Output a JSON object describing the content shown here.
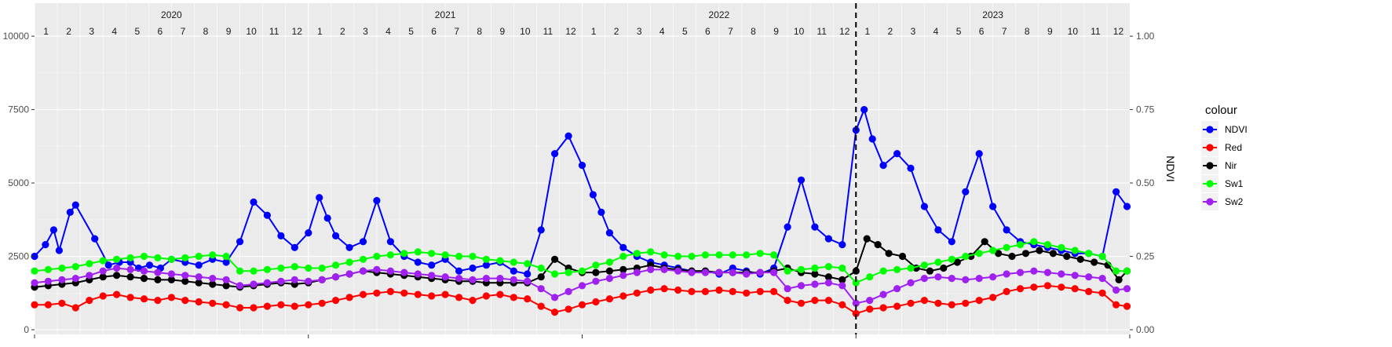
{
  "chart_data": {
    "type": "line",
    "title": "",
    "xlabel": "",
    "ylabel": "",
    "y2label": "NDVI",
    "ylim": [
      0,
      10000
    ],
    "y2lim": [
      0,
      1
    ],
    "yticks": [
      "0",
      "2500",
      "5000",
      "7500",
      "10000"
    ],
    "y2ticks": [
      "0.00",
      "0.25",
      "0.50",
      "0.75",
      "1.00"
    ],
    "grid": true,
    "legend_title": "colour",
    "legend_position": "right",
    "years": [
      "2020",
      "2021",
      "2022",
      "2023"
    ],
    "months": [
      "1",
      "2",
      "3",
      "4",
      "5",
      "6",
      "7",
      "8",
      "9",
      "10",
      "11",
      "12"
    ],
    "vline_x": 2023.0,
    "series": [
      {
        "name": "NDVI",
        "color": "#0000ff",
        "x": [
          2020.0,
          2020.04,
          2020.07,
          2020.09,
          2020.13,
          2020.15,
          2020.22,
          2020.27,
          2020.31,
          2020.35,
          2020.38,
          2020.42,
          2020.46,
          2020.5,
          2020.55,
          2020.6,
          2020.65,
          2020.7,
          2020.75,
          2020.8,
          2020.85,
          2020.9,
          2020.95,
          2021.0,
          2021.04,
          2021.07,
          2021.1,
          2021.15,
          2021.2,
          2021.25,
          2021.3,
          2021.35,
          2021.4,
          2021.45,
          2021.5,
          2021.55,
          2021.6,
          2021.65,
          2021.7,
          2021.75,
          2021.8,
          2021.85,
          2021.9,
          2021.95,
          2022.0,
          2022.04,
          2022.07,
          2022.1,
          2022.15,
          2022.2,
          2022.25,
          2022.3,
          2022.35,
          2022.4,
          2022.45,
          2022.5,
          2022.55,
          2022.6,
          2022.65,
          2022.7,
          2022.75,
          2022.8,
          2022.85,
          2022.9,
          2022.95,
          2023.0,
          2023.03,
          2023.06,
          2023.1,
          2023.15,
          2023.2,
          2023.25,
          2023.3,
          2023.35,
          2023.4,
          2023.45,
          2023.5,
          2023.55,
          2023.6,
          2023.65,
          2023.7,
          2023.75,
          2023.8,
          2023.85,
          2023.9,
          2023.95,
          2023.99
        ],
        "y": [
          2500,
          2900,
          3400,
          2700,
          4000,
          4250,
          3100,
          2200,
          2300,
          2300,
          2100,
          2200,
          2100,
          2400,
          2300,
          2200,
          2400,
          2300,
          3000,
          4350,
          3900,
          3200,
          2800,
          3300,
          4500,
          3800,
          3200,
          2800,
          3000,
          4400,
          3000,
          2500,
          2300,
          2200,
          2400,
          2000,
          2100,
          2200,
          2300,
          2000,
          1900,
          3400,
          6000,
          6600,
          5600,
          4600,
          4000,
          3300,
          2800,
          2500,
          2300,
          2200,
          2100,
          2000,
          2000,
          1900,
          2100,
          2000,
          1900,
          2100,
          3500,
          5100,
          3500,
          3100,
          2900,
          6800,
          7500,
          6500,
          5600,
          6000,
          5500,
          4200,
          3400,
          3000,
          4700,
          6000,
          4200,
          3400,
          3000,
          2900,
          2800,
          2700,
          2600,
          2600,
          2500,
          4700,
          4200
        ]
      },
      {
        "name": "Red",
        "color": "#ff0000",
        "x": [
          2020.0,
          2020.05,
          2020.1,
          2020.15,
          2020.2,
          2020.25,
          2020.3,
          2020.35,
          2020.4,
          2020.45,
          2020.5,
          2020.55,
          2020.6,
          2020.65,
          2020.7,
          2020.75,
          2020.8,
          2020.85,
          2020.9,
          2020.95,
          2021.0,
          2021.05,
          2021.1,
          2021.15,
          2021.2,
          2021.25,
          2021.3,
          2021.35,
          2021.4,
          2021.45,
          2021.5,
          2021.55,
          2021.6,
          2021.65,
          2021.7,
          2021.75,
          2021.8,
          2021.85,
          2021.9,
          2021.95,
          2022.0,
          2022.05,
          2022.1,
          2022.15,
          2022.2,
          2022.25,
          2022.3,
          2022.35,
          2022.4,
          2022.45,
          2022.5,
          2022.55,
          2022.6,
          2022.65,
          2022.7,
          2022.75,
          2022.8,
          2022.85,
          2022.9,
          2022.95,
          2023.0,
          2023.05,
          2023.1,
          2023.15,
          2023.2,
          2023.25,
          2023.3,
          2023.35,
          2023.4,
          2023.45,
          2023.5,
          2023.55,
          2023.6,
          2023.65,
          2023.7,
          2023.75,
          2023.8,
          2023.85,
          2023.9,
          2023.95,
          2023.99
        ],
        "y": [
          850,
          850,
          900,
          750,
          1000,
          1150,
          1200,
          1100,
          1050,
          1000,
          1100,
          1000,
          950,
          900,
          850,
          750,
          750,
          800,
          850,
          800,
          850,
          900,
          1000,
          1100,
          1200,
          1250,
          1300,
          1250,
          1200,
          1150,
          1200,
          1100,
          1000,
          1150,
          1200,
          1100,
          1050,
          800,
          600,
          700,
          850,
          950,
          1050,
          1150,
          1250,
          1350,
          1400,
          1350,
          1300,
          1300,
          1350,
          1300,
          1250,
          1300,
          1300,
          1000,
          900,
          1000,
          1000,
          850,
          550,
          700,
          750,
          800,
          900,
          1000,
          900,
          850,
          900,
          1000,
          1100,
          1300,
          1400,
          1450,
          1500,
          1450,
          1400,
          1300,
          1250,
          850,
          800
        ]
      },
      {
        "name": "Nir",
        "color": "#000000",
        "x": [
          2020.0,
          2020.05,
          2020.1,
          2020.15,
          2020.2,
          2020.25,
          2020.3,
          2020.35,
          2020.4,
          2020.45,
          2020.5,
          2020.55,
          2020.6,
          2020.65,
          2020.7,
          2020.75,
          2020.8,
          2020.85,
          2020.9,
          2020.95,
          2021.0,
          2021.05,
          2021.1,
          2021.15,
          2021.2,
          2021.25,
          2021.3,
          2021.35,
          2021.4,
          2021.45,
          2021.5,
          2021.55,
          2021.6,
          2021.65,
          2021.7,
          2021.75,
          2021.8,
          2021.85,
          2021.9,
          2021.95,
          2022.0,
          2022.05,
          2022.1,
          2022.15,
          2022.2,
          2022.25,
          2022.3,
          2022.35,
          2022.4,
          2022.45,
          2022.5,
          2022.55,
          2022.6,
          2022.65,
          2022.7,
          2022.75,
          2022.8,
          2022.85,
          2022.9,
          2022.95,
          2023.0,
          2023.04,
          2023.08,
          2023.12,
          2023.17,
          2023.22,
          2023.27,
          2023.32,
          2023.37,
          2023.42,
          2023.47,
          2023.52,
          2023.57,
          2023.62,
          2023.67,
          2023.72,
          2023.77,
          2023.82,
          2023.87,
          2023.92,
          2023.96,
          2023.99
        ],
        "y": [
          1450,
          1500,
          1550,
          1600,
          1700,
          1800,
          1850,
          1800,
          1750,
          1700,
          1700,
          1650,
          1600,
          1550,
          1500,
          1450,
          1500,
          1550,
          1600,
          1550,
          1600,
          1700,
          1800,
          1900,
          2000,
          1950,
          1900,
          1850,
          1800,
          1750,
          1700,
          1650,
          1650,
          1600,
          1600,
          1600,
          1600,
          1800,
          2400,
          2100,
          1950,
          1950,
          2000,
          2050,
          2100,
          2200,
          2100,
          2050,
          2000,
          2000,
          1950,
          1950,
          1950,
          1950,
          2000,
          2100,
          1950,
          1900,
          1800,
          1700,
          2000,
          3100,
          2900,
          2600,
          2500,
          2100,
          2000,
          2100,
          2300,
          2500,
          3000,
          2600,
          2500,
          2600,
          2700,
          2600,
          2500,
          2400,
          2300,
          2200,
          1700,
          2000
        ]
      },
      {
        "name": "Sw1",
        "color": "#00ff00",
        "x": [
          2020.0,
          2020.05,
          2020.1,
          2020.15,
          2020.2,
          2020.25,
          2020.3,
          2020.35,
          2020.4,
          2020.45,
          2020.5,
          2020.55,
          2020.6,
          2020.65,
          2020.7,
          2020.75,
          2020.8,
          2020.85,
          2020.9,
          2020.95,
          2021.0,
          2021.05,
          2021.1,
          2021.15,
          2021.2,
          2021.25,
          2021.3,
          2021.35,
          2021.4,
          2021.45,
          2021.5,
          2021.55,
          2021.6,
          2021.65,
          2021.7,
          2021.75,
          2021.8,
          2021.85,
          2021.9,
          2021.95,
          2022.0,
          2022.05,
          2022.1,
          2022.15,
          2022.2,
          2022.25,
          2022.3,
          2022.35,
          2022.4,
          2022.45,
          2022.5,
          2022.55,
          2022.6,
          2022.65,
          2022.7,
          2022.75,
          2022.8,
          2022.85,
          2022.9,
          2022.95,
          2023.0,
          2023.05,
          2023.1,
          2023.15,
          2023.2,
          2023.25,
          2023.3,
          2023.35,
          2023.4,
          2023.45,
          2023.5,
          2023.55,
          2023.6,
          2023.65,
          2023.7,
          2023.75,
          2023.8,
          2023.85,
          2023.9,
          2023.95,
          2023.99
        ],
        "y": [
          2000,
          2050,
          2100,
          2150,
          2250,
          2350,
          2400,
          2450,
          2500,
          2450,
          2400,
          2450,
          2500,
          2550,
          2500,
          2000,
          2000,
          2050,
          2100,
          2150,
          2100,
          2100,
          2200,
          2300,
          2400,
          2500,
          2550,
          2600,
          2650,
          2600,
          2550,
          2500,
          2500,
          2400,
          2350,
          2300,
          2250,
          2100,
          1900,
          1950,
          2000,
          2200,
          2300,
          2500,
          2600,
          2650,
          2550,
          2500,
          2500,
          2550,
          2550,
          2550,
          2550,
          2600,
          2550,
          2000,
          2050,
          2100,
          2150,
          2100,
          1600,
          1800,
          2000,
          2050,
          2100,
          2200,
          2300,
          2400,
          2500,
          2600,
          2700,
          2800,
          2900,
          3000,
          2900,
          2800,
          2700,
          2600,
          2500,
          2000,
          2000
        ]
      },
      {
        "name": "Sw2",
        "color": "#a020f0",
        "x": [
          2020.0,
          2020.05,
          2020.1,
          2020.15,
          2020.2,
          2020.25,
          2020.3,
          2020.35,
          2020.4,
          2020.45,
          2020.5,
          2020.55,
          2020.6,
          2020.65,
          2020.7,
          2020.75,
          2020.8,
          2020.85,
          2020.9,
          2020.95,
          2021.0,
          2021.05,
          2021.1,
          2021.15,
          2021.2,
          2021.25,
          2021.3,
          2021.35,
          2021.4,
          2021.45,
          2021.5,
          2021.55,
          2021.6,
          2021.65,
          2021.7,
          2021.75,
          2021.8,
          2021.85,
          2021.9,
          2021.95,
          2022.0,
          2022.05,
          2022.1,
          2022.15,
          2022.2,
          2022.25,
          2022.3,
          2022.35,
          2022.4,
          2022.45,
          2022.5,
          2022.55,
          2022.6,
          2022.65,
          2022.7,
          2022.75,
          2022.8,
          2022.85,
          2022.9,
          2022.95,
          2023.0,
          2023.05,
          2023.1,
          2023.15,
          2023.2,
          2023.25,
          2023.3,
          2023.35,
          2023.4,
          2023.45,
          2023.5,
          2023.55,
          2023.6,
          2023.65,
          2023.7,
          2023.75,
          2023.8,
          2023.85,
          2023.9,
          2023.95,
          2023.99
        ],
        "y": [
          1600,
          1650,
          1700,
          1750,
          1850,
          2000,
          2100,
          2050,
          2000,
          1950,
          1900,
          1850,
          1800,
          1750,
          1700,
          1500,
          1550,
          1600,
          1650,
          1700,
          1650,
          1700,
          1800,
          1900,
          2000,
          2050,
          2000,
          1950,
          1900,
          1850,
          1800,
          1750,
          1700,
          1750,
          1750,
          1700,
          1650,
          1400,
          1100,
          1300,
          1500,
          1650,
          1750,
          1850,
          1950,
          2050,
          2050,
          2000,
          1950,
          1950,
          1950,
          1950,
          1900,
          1950,
          1950,
          1400,
          1500,
          1550,
          1600,
          1500,
          900,
          1000,
          1200,
          1400,
          1600,
          1750,
          1800,
          1750,
          1700,
          1750,
          1800,
          1900,
          1950,
          2000,
          1950,
          1900,
          1850,
          1800,
          1750,
          1350,
          1400
        ]
      }
    ]
  }
}
